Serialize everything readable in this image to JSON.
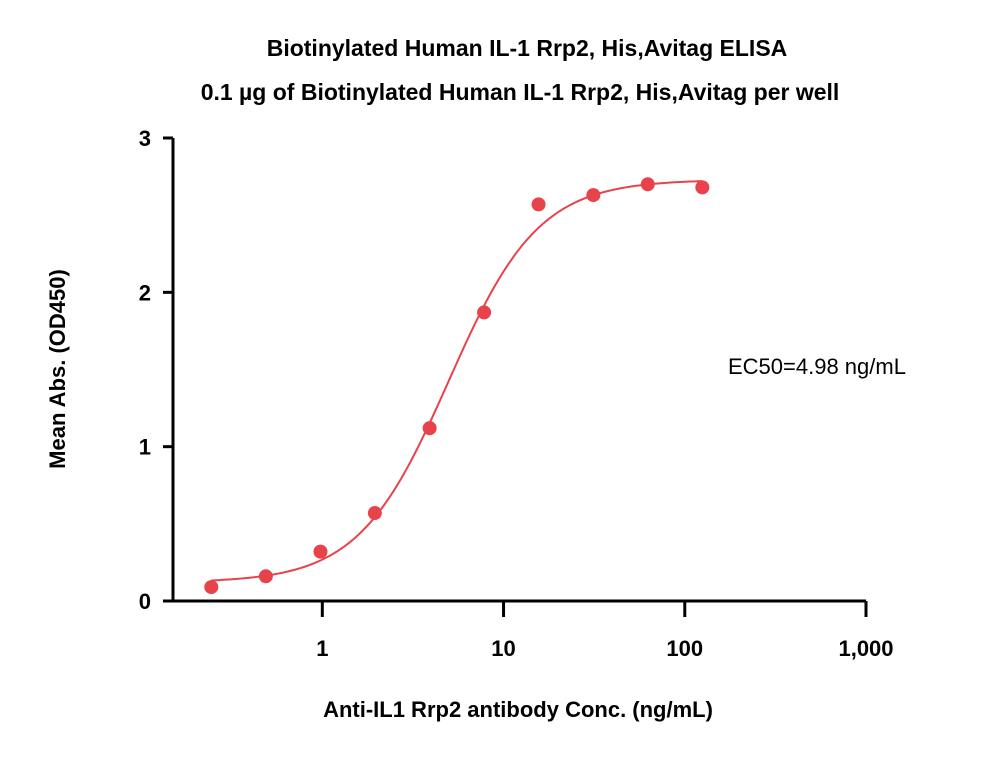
{
  "chart_data": {
    "type": "scatter",
    "title": "Biotinylated Human  IL-1 Rrp2, His,Avitag ELISA",
    "subtitle": "0.1 µg of Biotinylated Human  IL-1 Rrp2, His,Avitag per well",
    "xlabel": "Anti-IL1 Rrp2 antibody Conc. (ng/mL)",
    "ylabel": "Mean Abs. (OD450)",
    "x_scale": "log",
    "xlim": [
      0.15,
      1000
    ],
    "ylim": [
      0,
      3
    ],
    "x_ticks": [
      {
        "value": 1,
        "label": "1"
      },
      {
        "value": 10,
        "label": "10"
      },
      {
        "value": 100,
        "label": "100"
      },
      {
        "value": 1000,
        "label": "1,000"
      }
    ],
    "y_ticks": [
      {
        "value": 0,
        "label": "0"
      },
      {
        "value": 1,
        "label": "1"
      },
      {
        "value": 2,
        "label": "2"
      },
      {
        "value": 3,
        "label": "3"
      }
    ],
    "series": [
      {
        "x": [
          0.244,
          0.488,
          0.977,
          1.95,
          3.91,
          7.81,
          15.6,
          31.3,
          62.5,
          125
        ],
        "y": [
          0.09,
          0.16,
          0.32,
          0.57,
          1.12,
          1.87,
          2.57,
          2.63,
          2.7,
          2.68
        ],
        "color": "#e8434a"
      }
    ],
    "fit_curve": {
      "model": "4PL",
      "bottom": 0.12,
      "top": 2.73,
      "ec50": 4.98,
      "hill": 1.75,
      "x_range": [
        0.244,
        125
      ],
      "color": "#e8434a"
    },
    "annotation": "EC50=4.98 ng/mL",
    "grid": false,
    "legend": "none"
  }
}
